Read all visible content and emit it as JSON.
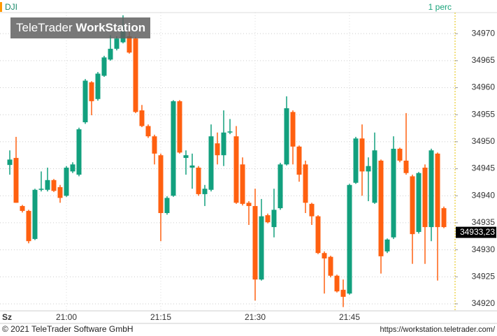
{
  "chart_data": {
    "type": "candlestick",
    "symbol": "DJI",
    "interval": "1 perc",
    "watermark": {
      "brand": "TeleTrader",
      "product": "WorkStation"
    },
    "volume_label": "Sz",
    "up_color": "#12a07e",
    "down_color": "#ff6010",
    "grid": true,
    "x": [
      null,
      null,
      null,
      null,
      null,
      null,
      null,
      null,
      null,
      "21:00",
      null,
      null,
      null,
      null,
      null,
      null,
      null,
      null,
      null,
      null,
      null,
      null,
      null,
      null,
      "21:15",
      null,
      null,
      null,
      null,
      null,
      null,
      null,
      null,
      null,
      null,
      null,
      null,
      null,
      null,
      "21:30",
      null,
      null,
      null,
      null,
      null,
      null,
      null,
      null,
      null,
      null,
      null,
      null,
      null,
      null,
      "21:45",
      null,
      null,
      null,
      null,
      null,
      null,
      null,
      null,
      null,
      null,
      null,
      null,
      null,
      null,
      null
    ],
    "open": [
      34945.7,
      34947.0,
      34938.1,
      34937.2,
      34932.0,
      34941.1,
      34941.1,
      34942.9,
      34941.6,
      34940.0,
      34944.5,
      34943.9,
      34953.6,
      34961.0,
      34957.9,
      34962.2,
      34965.2,
      34967.2,
      34968.4,
      34969.5,
      34969.1,
      34955.8,
      34952.9,
      34951.0,
      34947.5,
      34936.8,
      34940.0,
      34957.5,
      34947.0,
      34945.2,
      34945.2,
      34940.3,
      34941.1,
      34949.7,
      34947.5,
      34951.7,
      34951.0,
      34945.8,
      34938.7,
      34938.1,
      34924.5,
      34936.4,
      34934.2,
      34937.7,
      34945.8,
      34955.5,
      34949.1,
      34945.8,
      34938.5,
      34936.2,
      34929.4,
      34928.7,
      34925.2,
      34922.6,
      34921.9,
      34942.4,
      34950.6,
      34944.5,
      34938.7,
      34946.5,
      34929.7,
      34932.3,
      34948.7,
      34946.5,
      34943.6,
      34933.3,
      34945.2,
      34934.2,
      34947.8,
      34937.7
    ],
    "high": [
      34948.4,
      34950.9,
      34938.3,
      34937.4,
      34941.3,
      34944.5,
      34945.2,
      34943.1,
      34942.0,
      34945.5,
      34946.2,
      34952.6,
      34961.6,
      34961.2,
      34962.9,
      34965.9,
      34969.7,
      34969.5,
      34973.4,
      34971.0,
      34969.4,
      34956.8,
      34953.2,
      34951.3,
      34947.8,
      34939.9,
      34957.7,
      34957.7,
      34948.4,
      34947.8,
      34945.5,
      34942.0,
      34953.2,
      34951.7,
      34955.8,
      34954.2,
      34952.9,
      34947.1,
      34939.0,
      34941.3,
      34939.4,
      34936.7,
      34941.3,
      34946.1,
      34958.4,
      34955.8,
      34949.3,
      34946.5,
      34938.7,
      34936.4,
      34929.7,
      34928.9,
      34925.4,
      34924.5,
      34942.2,
      34950.9,
      34953.2,
      34947.1,
      34951.7,
      34946.7,
      34932.1,
      34951.0,
      34948.9,
      34955.3,
      34943.9,
      34944.4,
      34945.8,
      34948.7,
      34948.0,
      34938.0
    ],
    "low": [
      34943.9,
      34938.7,
      34936.9,
      34931.2,
      34931.8,
      34940.8,
      34940.8,
      34940.7,
      34938.7,
      34939.8,
      34944.2,
      34943.6,
      34953.3,
      34954.9,
      34957.6,
      34962.0,
      34965.0,
      34966.9,
      34968.2,
      34966.3,
      34955.3,
      34952.7,
      34950.7,
      34945.8,
      34931.6,
      34936.5,
      34939.8,
      34947.8,
      34943.9,
      34941.3,
      34940.0,
      34938.1,
      34940.8,
      34945.8,
      34945.5,
      34951.4,
      34938.5,
      34938.2,
      34934.6,
      34920.6,
      34924.3,
      34934.9,
      34932.3,
      34937.4,
      34945.6,
      34945.8,
      34942.6,
      34936.8,
      34934.6,
      34929.2,
      34921.9,
      34924.9,
      34922.1,
      34919.4,
      34921.7,
      34942.2,
      34940.0,
      34939.0,
      34938.5,
      34925.6,
      34929.4,
      34932.0,
      34946.2,
      34943.9,
      34927.4,
      34933.0,
      34927.4,
      34931.6,
      34924.3,
      34934.0
    ],
    "close": [
      34946.7,
      34938.7,
      34937.2,
      34931.6,
      34941.1,
      34941.3,
      34942.9,
      34940.9,
      34939.6,
      34945.2,
      34945.8,
      34952.3,
      34961.3,
      34957.5,
      34962.6,
      34965.6,
      34967.2,
      34969.1,
      34970.4,
      34966.5,
      34955.5,
      34952.9,
      34951.0,
      34947.8,
      34936.8,
      34939.6,
      34957.5,
      34948.0,
      34947.5,
      34945.6,
      34940.3,
      34941.3,
      34951.0,
      34947.5,
      34951.7,
      34951.9,
      34938.7,
      34938.5,
      34938.1,
      34924.5,
      34936.2,
      34935.1,
      34937.4,
      34945.8,
      34956.2,
      34949.1,
      34943.9,
      34938.7,
      34936.2,
      34929.4,
      34928.4,
      34925.2,
      34922.3,
      34921.3,
      34942.0,
      34950.6,
      34944.5,
      34945.5,
      34948.4,
      34928.8,
      34931.9,
      34948.7,
      34946.5,
      34944.2,
      34932.9,
      34944.2,
      34934.2,
      34948.4,
      34934.2,
      34934.2
    ],
    "last_price": {
      "value": 34933.23,
      "label": "34933,23"
    },
    "ylim": [
      34918.7,
      34973.9
    ],
    "yticks": [
      34920,
      34925,
      34930,
      34935,
      34940,
      34945,
      34950,
      34955,
      34960,
      34965,
      34970
    ]
  },
  "footer": {
    "copyright": "© 2021 TeleTrader Software GmbH",
    "url": "https://workstation.teletrader.com/"
  }
}
